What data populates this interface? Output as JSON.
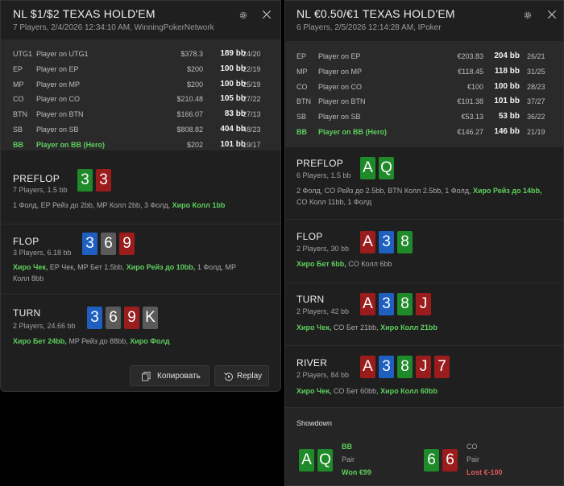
{
  "left": {
    "title": "NL $1/$2 TEXAS HOLD'EM",
    "subtitle": "7 Players, 2/4/2026 12:34:10 AM, WinningPokerNetwork",
    "players": [
      {
        "pos": "UTG1",
        "name": "Player on UTG1",
        "stack": "$378.3",
        "bb": "189 bb",
        "stat": "24/20",
        "hero": false
      },
      {
        "pos": "EP",
        "name": "Player on EP",
        "stack": "$200",
        "bb": "100 bb",
        "stat": "22/19",
        "hero": false
      },
      {
        "pos": "MP",
        "name": "Player on MP",
        "stack": "$200",
        "bb": "100 bb",
        "stat": "25/19",
        "hero": false
      },
      {
        "pos": "CO",
        "name": "Player on CO",
        "stack": "$210.48",
        "bb": "105 bb",
        "stat": "27/22",
        "hero": false
      },
      {
        "pos": "BTN",
        "name": "Player on BTN",
        "stack": "$166.07",
        "bb": "83 bb",
        "stat": "27/13",
        "hero": false
      },
      {
        "pos": "SB",
        "name": "Player on SB",
        "stack": "$808.82",
        "bb": "404 bb",
        "stat": "48/23",
        "hero": false
      },
      {
        "pos": "BB",
        "name": "Player on BB (Hero)",
        "stack": "$202",
        "bb": "101 bb",
        "stat": "19/17",
        "hero": true
      }
    ],
    "streets": {
      "preflop": {
        "name": "PREFLOP",
        "sub": "7 Players, 1.5 bb",
        "cards": [
          {
            "r": "3",
            "c": "g"
          },
          {
            "r": "3",
            "c": "r"
          }
        ],
        "a1": "1 Фолд, EP Рейз до 2bb, MP Колл 2bb, 3 Фолд, ",
        "a1h": "Хиро Колл 1bb"
      },
      "flop": {
        "name": "FLOP",
        "sub": "3 Players, 6.18 bb",
        "cards": [
          {
            "r": "3",
            "c": "b"
          },
          {
            "r": "6",
            "c": "k"
          },
          {
            "r": "9",
            "c": "r"
          }
        ],
        "h1": "Хиро Чек,",
        "a1": " EP Чек, MP Бет 1.5bb, ",
        "h2": "Хиро Рейз до 10bb,",
        "a2": " 1 Фолд, MP",
        "a3": "Колл 8bb"
      },
      "turn": {
        "name": "TURN",
        "sub": "2 Players, 24.66 bb",
        "cards": [
          {
            "r": "3",
            "c": "b"
          },
          {
            "r": "6",
            "c": "k"
          },
          {
            "r": "9",
            "c": "r"
          },
          {
            "r": "K",
            "c": "k"
          }
        ],
        "h1": "Хиро Бет 24bb,",
        "a1": " MP Рейз до 88bb, ",
        "h2": "Хиро Фолд"
      }
    },
    "copy_label": "Копировать",
    "replay_label": "Replay"
  },
  "right": {
    "title": "NL €0.50/€1 TEXAS HOLD'EM",
    "subtitle": "6 Players, 2/5/2026 12:14:28 AM, IPoker",
    "players": [
      {
        "pos": "EP",
        "name": "Player on EP",
        "stack": "€203.83",
        "bb": "204 bb",
        "stat": "26/21",
        "hero": false
      },
      {
        "pos": "MP",
        "name": "Player on MP",
        "stack": "€118.45",
        "bb": "118 bb",
        "stat": "31/25",
        "hero": false
      },
      {
        "pos": "CO",
        "name": "Player on CO",
        "stack": "€100",
        "bb": "100 bb",
        "stat": "28/23",
        "hero": false
      },
      {
        "pos": "BTN",
        "name": "Player on BTN",
        "stack": "€101.38",
        "bb": "101 bb",
        "stat": "37/27",
        "hero": false
      },
      {
        "pos": "SB",
        "name": "Player on SB",
        "stack": "€53.13",
        "bb": "53 bb",
        "stat": "36/22",
        "hero": false
      },
      {
        "pos": "BB",
        "name": "Player on BB (Hero)",
        "stack": "€146.27",
        "bb": "146 bb",
        "stat": "21/19",
        "hero": true
      }
    ],
    "streets": {
      "preflop": {
        "name": "PREFLOP",
        "sub": "6 Players, 1.5 bb",
        "cards": [
          {
            "r": "A",
            "c": "g"
          },
          {
            "r": "Q",
            "c": "g"
          }
        ],
        "a1": "2 Фолд, CO Рейз до 2.5bb, BTN Колл 2.5bb, 1 Фолд, ",
        "h1": "Хиро Рейз до 14bb,",
        "a2": "CO Колл 11bb, 1 Фолд"
      },
      "flop": {
        "name": "FLOP",
        "sub": "2 Players, 30 bb",
        "cards": [
          {
            "r": "A",
            "c": "r"
          },
          {
            "r": "3",
            "c": "b"
          },
          {
            "r": "8",
            "c": "g"
          }
        ],
        "h1": "Хиро Бет 6bb,",
        "a1": " CO Колл 6bb"
      },
      "turn": {
        "name": "TURN",
        "sub": "2 Players, 42 bb",
        "cards": [
          {
            "r": "A",
            "c": "r"
          },
          {
            "r": "3",
            "c": "b"
          },
          {
            "r": "8",
            "c": "g"
          },
          {
            "r": "J",
            "c": "r"
          }
        ],
        "h1": "Хиро Чек,",
        "a1": " CO Бет 21bb, ",
        "h2": "Хиро Колл 21bb"
      },
      "river": {
        "name": "RIVER",
        "sub": "2 Players, 84 bb",
        "cards": [
          {
            "r": "A",
            "c": "r"
          },
          {
            "r": "3",
            "c": "b"
          },
          {
            "r": "8",
            "c": "g"
          },
          {
            "r": "J",
            "c": "r"
          },
          {
            "r": "7",
            "c": "r"
          }
        ],
        "h1": "Хиро Чек,",
        "a1": " CO Бет 60bb, ",
        "h2": "Хиро Колл 60bb"
      }
    },
    "showdown": {
      "title": "Showdown",
      "p1": {
        "name": "BB",
        "hand": "Pair",
        "result": "Won €99",
        "cards": [
          {
            "r": "A",
            "c": "g"
          },
          {
            "r": "Q",
            "c": "g"
          }
        ]
      },
      "p2": {
        "name": "CO",
        "hand": "Pair",
        "result": "Lost €-100",
        "cards": [
          {
            "r": "6",
            "c": "g"
          },
          {
            "r": "6",
            "c": "r"
          }
        ]
      }
    }
  },
  "colors": {
    "hero_green": "#5fcf5f",
    "card_green": "#1e8a2a",
    "card_red": "#9b1c1c",
    "card_blue": "#1e5fc0",
    "card_gray": "#5a5a5a",
    "won": "#5fcf5f",
    "lost": "#e05a5a"
  },
  "icons": [
    "gear-icon",
    "close-icon",
    "copy-icon",
    "replay-icon"
  ]
}
